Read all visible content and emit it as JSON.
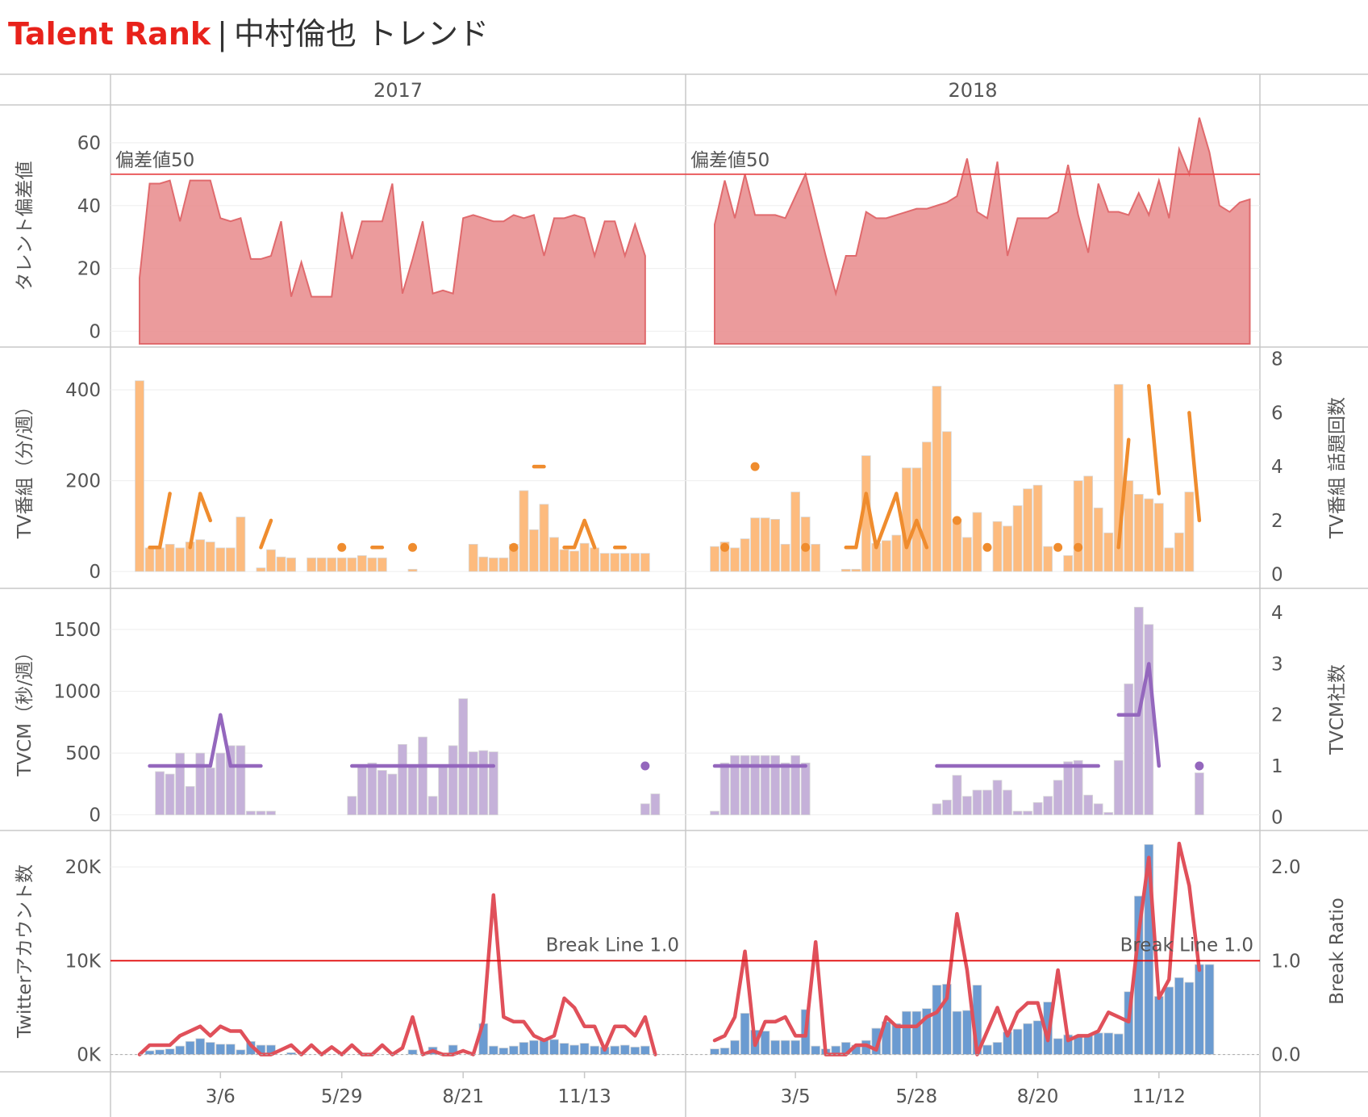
{
  "title": {
    "brand": "Talent Rank",
    "separator": "|",
    "text": "中村倫也 トレンド"
  },
  "colors": {
    "area": "#e8898b",
    "area_line": "#e06a6d",
    "ref_line": "#e84c4f",
    "tv_bar": "#fdbb7e",
    "tv_line": "#ef8c2e",
    "cm_bar": "#c5b1d9",
    "cm_line": "#9467bd",
    "tw_bar": "#6b9bd1",
    "tw_line": "#e0505a",
    "break_line": "#e00000",
    "grid": "#eeeeee",
    "frame": "#c8c8c8",
    "text": "#555555"
  },
  "chart_data": {
    "type": "trellis",
    "columns": [
      "2017",
      "2018"
    ],
    "x_ticks": {
      "2017": [
        {
          "label": "3/6",
          "week": 9
        },
        {
          "label": "5/29",
          "week": 21
        },
        {
          "label": "8/21",
          "week": 33
        },
        {
          "label": "11/13",
          "week": 45
        }
      ],
      "2018": [
        {
          "label": "3/5",
          "week": 9
        },
        {
          "label": "5/28",
          "week": 21
        },
        {
          "label": "8/20",
          "week": 33
        },
        {
          "label": "11/12",
          "week": 45
        }
      ]
    },
    "panels": [
      {
        "id": "deviation",
        "type": "area",
        "ylabel": "タレント偏差値",
        "ylim": [
          -4,
          70
        ],
        "yticks": [
          0,
          20,
          40,
          60
        ],
        "ref_line": {
          "value": 50,
          "label": "偏差値50"
        },
        "series": {
          "2017": [
            17,
            47,
            47,
            48,
            35,
            48,
            48,
            48,
            36,
            35,
            36,
            23,
            23,
            24,
            35,
            11,
            22,
            11,
            11,
            11,
            38,
            23,
            35,
            35,
            35,
            47,
            12,
            23,
            35,
            12,
            13,
            12,
            36,
            37,
            36,
            35,
            35,
            37,
            36,
            37,
            24,
            36,
            36,
            37,
            36,
            24,
            35,
            35,
            24,
            34,
            24
          ],
          "2018": [
            34,
            48,
            36,
            50,
            37,
            37,
            37,
            36,
            43,
            50,
            37,
            24,
            12,
            24,
            24,
            38,
            36,
            36,
            37,
            38,
            39,
            39,
            40,
            41,
            43,
            55,
            38,
            36,
            54,
            24,
            36,
            36,
            36,
            36,
            38,
            53,
            37,
            25,
            47,
            38,
            38,
            37,
            44,
            37,
            48,
            36,
            58,
            50,
            68,
            57,
            40,
            38,
            41,
            42
          ]
        }
      },
      {
        "id": "tv",
        "type": "bar+line",
        "ylabel": "TV番組（分/週）",
        "y2label": "TV番組 話題回数",
        "ylim": [
          -30,
          480
        ],
        "yticks": [
          0,
          200,
          400
        ],
        "y2lim": [
          -0.4,
          8.2
        ],
        "y2ticks": [
          0,
          2,
          4,
          6,
          8
        ],
        "bars": {
          "2017": [
            420,
            52,
            52,
            60,
            52,
            65,
            70,
            65,
            52,
            52,
            120,
            0,
            8,
            48,
            32,
            30,
            0,
            30,
            30,
            30,
            30,
            30,
            35,
            30,
            30,
            0,
            0,
            5,
            0,
            0,
            0,
            0,
            0,
            60,
            32,
            30,
            30,
            60,
            178,
            92,
            148,
            75,
            48,
            45,
            62,
            52,
            40,
            40,
            40,
            40,
            40
          ],
          "2018": [
            55,
            65,
            52,
            72,
            118,
            118,
            115,
            60,
            175,
            120,
            60,
            0,
            0,
            5,
            5,
            255,
            62,
            68,
            80,
            228,
            228,
            285,
            408,
            308,
            115,
            75,
            130,
            0,
            110,
            100,
            145,
            182,
            190,
            55,
            0,
            35,
            200,
            210,
            140,
            85,
            412,
            200,
            170,
            160,
            150,
            52,
            85,
            175
          ]
        },
        "line": {
          "2017": [
            null,
            1,
            1,
            3,
            null,
            1,
            3,
            2,
            null,
            null,
            null,
            null,
            1,
            2,
            null,
            null,
            null,
            null,
            null,
            null,
            1,
            null,
            null,
            1,
            1,
            null,
            null,
            1,
            null,
            null,
            null,
            null,
            null,
            null,
            null,
            null,
            null,
            1,
            null,
            4,
            4,
            null,
            1,
            1,
            2,
            1,
            null,
            1,
            1,
            null,
            null
          ],
          "2018": [
            null,
            1,
            null,
            null,
            4,
            null,
            null,
            null,
            null,
            1,
            null,
            null,
            null,
            1,
            1,
            3,
            1,
            2,
            3,
            1,
            2,
            1,
            null,
            null,
            2,
            null,
            null,
            1,
            null,
            null,
            null,
            null,
            null,
            null,
            1,
            null,
            1,
            null,
            null,
            null,
            1,
            5,
            null,
            7,
            3,
            null,
            null,
            6,
            2,
            null
          ]
        }
      },
      {
        "id": "tvcm",
        "type": "bar+line",
        "ylabel": "TVCM（秒/週）",
        "y2label": "TVCM社数",
        "ylim": [
          -100,
          1780
        ],
        "yticks": [
          0,
          500,
          1000,
          1500
        ],
        "y2lim": [
          -0.2,
          4.35
        ],
        "y2ticks": [
          0,
          1,
          2,
          3,
          4
        ],
        "bars": {
          "2017": [
            0,
            0,
            350,
            330,
            500,
            230,
            500,
            380,
            500,
            560,
            560,
            30,
            30,
            30,
            0,
            0,
            0,
            0,
            0,
            0,
            0,
            150,
            400,
            420,
            360,
            330,
            570,
            400,
            630,
            150,
            400,
            560,
            940,
            510,
            520,
            510,
            0,
            0,
            0,
            0,
            0,
            0,
            0,
            0,
            0,
            0,
            0,
            0,
            0,
            0,
            90,
            170
          ],
          "2018": [
            30,
            420,
            480,
            480,
            480,
            480,
            480,
            420,
            480,
            420,
            0,
            0,
            0,
            0,
            0,
            0,
            0,
            0,
            0,
            0,
            0,
            0,
            90,
            120,
            320,
            150,
            200,
            200,
            280,
            200,
            30,
            30,
            100,
            150,
            280,
            430,
            440,
            160,
            90,
            20,
            440,
            1060,
            1680,
            1540,
            0,
            0,
            0,
            0,
            340
          ]
        },
        "line": {
          "2017": [
            null,
            1,
            1,
            1,
            1,
            1,
            1,
            1,
            2,
            1,
            1,
            1,
            1,
            null,
            null,
            null,
            null,
            null,
            null,
            null,
            null,
            1,
            1,
            1,
            1,
            1,
            1,
            1,
            1,
            1,
            1,
            1,
            1,
            1,
            1,
            1,
            null,
            null,
            null,
            null,
            null,
            null,
            null,
            null,
            null,
            null,
            null,
            null,
            null,
            null,
            1,
            null
          ],
          "2018": [
            1,
            1,
            1,
            1,
            1,
            1,
            1,
            1,
            1,
            1,
            null,
            null,
            null,
            null,
            null,
            null,
            null,
            null,
            null,
            null,
            null,
            null,
            1,
            1,
            1,
            1,
            1,
            1,
            1,
            1,
            1,
            1,
            1,
            1,
            1,
            1,
            1,
            1,
            1,
            null,
            2,
            2,
            2,
            3,
            1,
            null,
            null,
            null,
            1
          ]
        }
      },
      {
        "id": "twitter",
        "type": "bar+line",
        "ylabel": "Twitterアカウント数",
        "y2label": "Break Ratio",
        "ylim": [
          -1500,
          23200
        ],
        "yticks": [
          0,
          10000,
          20000
        ],
        "ytick_labels": [
          "0K",
          "10K",
          "20K"
        ],
        "y2lim": [
          -0.15,
          2.32
        ],
        "y2ticks": [
          0,
          1,
          2
        ],
        "y2tick_labels": [
          "0.0",
          "1.0",
          "2.0"
        ],
        "ref_line": {
          "value": 1.0,
          "label": "Break Line 1.0"
        },
        "bars": {
          "2017": [
            0,
            400,
            500,
            600,
            900,
            1400,
            1700,
            1300,
            1100,
            1100,
            500,
            1400,
            1000,
            1000,
            0,
            200,
            0,
            0,
            0,
            0,
            0,
            0,
            0,
            0,
            0,
            0,
            0,
            500,
            0,
            800,
            0,
            1000,
            0,
            0,
            3300,
            900,
            700,
            900,
            1300,
            1500,
            1700,
            1600,
            1200,
            1000,
            1200,
            900,
            800,
            900,
            1000,
            800,
            900
          ],
          "2018": [
            600,
            700,
            1500,
            4400,
            2600,
            2500,
            1500,
            1500,
            1500,
            4800,
            900,
            600,
            900,
            1300,
            1000,
            1500,
            2800,
            3500,
            3300,
            4600,
            4600,
            4900,
            7400,
            7500,
            4600,
            4700,
            7400,
            1000,
            1300,
            2400,
            2700,
            3300,
            3600,
            5600,
            1700,
            2100,
            1900,
            2100,
            2300,
            2300,
            2200,
            6700,
            16900,
            22400,
            6200,
            7200,
            8200,
            7700,
            9600,
            9600
          ]
        },
        "line": {
          "2017": [
            0,
            0.1,
            0.1,
            0.1,
            0.2,
            0.25,
            0.3,
            0.2,
            0.3,
            0.25,
            0.25,
            0.1,
            0,
            0,
            0.05,
            0.1,
            0,
            0.1,
            0,
            0.08,
            0,
            0.1,
            0,
            0,
            0.1,
            0,
            0.07,
            0.4,
            0,
            0.04,
            0,
            0,
            0.04,
            0,
            0.35,
            1.7,
            0.4,
            0.35,
            0.35,
            0.2,
            0.15,
            0.2,
            0.6,
            0.5,
            0.3,
            0.3,
            0.05,
            0.3,
            0.3,
            0.2,
            0.4,
            0
          ],
          "2018": [
            0.15,
            0.2,
            0.4,
            1.1,
            0.1,
            0.35,
            0.35,
            0.4,
            0.2,
            0.2,
            1.2,
            0,
            0,
            0,
            0.1,
            0.1,
            0.05,
            0.4,
            0.3,
            0.3,
            0.3,
            0.4,
            0.45,
            0.6,
            1.5,
            0.9,
            0,
            0.25,
            0.5,
            0.2,
            0.45,
            0.55,
            0.55,
            0.15,
            0.9,
            0.15,
            0.2,
            0.2,
            0.25,
            0.45,
            0.4,
            0.35,
            1.3,
            2.1,
            0.6,
            0.8,
            2.25,
            1.8,
            0.9
          ]
        }
      }
    ]
  }
}
